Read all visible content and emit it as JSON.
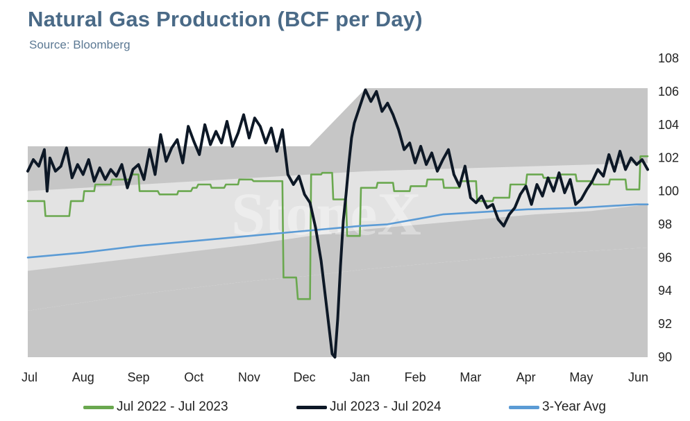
{
  "header": {
    "title": "Natural Gas Production (BCF per Day)",
    "subtitle": "Source: Bloomberg"
  },
  "watermark": "StoneX",
  "colors": {
    "series_2022": "#6aa84f",
    "series_2023": "#0d1826",
    "series_avg": "#5b9bd5",
    "band_dark": "#c6c6c6",
    "band_light": "#e3e3e3"
  },
  "chart_data": {
    "type": "line",
    "title": "Natural Gas Production (BCF per Day)",
    "subtitle": "Source: Bloomberg",
    "x_categories": [
      "Jul",
      "Aug",
      "Sep",
      "Oct",
      "Nov",
      "Dec",
      "Jan",
      "Feb",
      "Mar",
      "Apr",
      "May",
      "Jun"
    ],
    "ylim": [
      90,
      108
    ],
    "yticks": [
      90,
      92,
      94,
      96,
      98,
      100,
      102,
      104,
      106,
      108
    ],
    "y_axis_side": "right",
    "legend_position": "bottom",
    "grid": false,
    "bands": [
      {
        "name": "range-outer",
        "lower": [
          92.8,
          93.3,
          93.8,
          94.2,
          94.6,
          94.9,
          95.3,
          95.6,
          95.9,
          96.2,
          96.4,
          96.6
        ],
        "upper": [
          102.7,
          102.7,
          102.7,
          102.7,
          102.7,
          102.7,
          106.2,
          106.2,
          106.2,
          106.2,
          106.2,
          106.2
        ]
      },
      {
        "name": "range-inner",
        "lower": [
          95.2,
          95.6,
          96.0,
          96.4,
          96.8,
          97.3,
          97.7,
          98.0,
          98.3,
          98.6,
          98.8,
          99.2
        ],
        "upper": [
          100.0,
          100.2,
          100.4,
          100.6,
          100.8,
          101.0,
          101.2,
          101.3,
          101.4,
          101.5,
          101.6,
          101.7
        ]
      }
    ],
    "series": [
      {
        "name": "Jul 2022 - Jul 2023",
        "x": [
          0.0,
          0.3,
          0.32,
          0.75,
          0.78,
          1.0,
          1.02,
          1.2,
          1.22,
          1.5,
          1.52,
          1.85,
          1.88,
          2.0,
          2.02,
          2.35,
          2.38,
          2.7,
          2.72,
          2.95,
          2.98,
          3.05,
          3.08,
          3.3,
          3.32,
          3.55,
          3.58,
          3.8,
          3.82,
          4.05,
          4.08,
          4.6,
          4.62,
          4.85,
          4.88,
          5.1,
          5.12,
          5.3,
          5.32,
          5.5,
          5.52,
          5.75,
          5.77,
          6.0,
          6.02,
          6.3,
          6.32,
          6.6,
          6.62,
          6.9,
          6.92,
          7.2,
          7.22,
          7.5,
          7.52,
          7.8,
          7.82,
          8.1,
          8.12,
          8.4,
          8.42,
          8.7,
          8.72,
          9.0,
          9.02,
          9.3,
          9.32,
          9.6,
          9.62,
          9.9,
          9.92,
          10.2,
          10.22,
          10.5,
          10.52,
          10.8,
          10.82,
          11.05,
          11.07,
          11.2
        ],
        "y": [
          99.4,
          99.4,
          98.5,
          98.5,
          99.4,
          99.4,
          100.0,
          100.0,
          100.4,
          100.4,
          100.7,
          100.7,
          101.0,
          101.0,
          100.0,
          100.0,
          99.8,
          99.8,
          100.0,
          100.0,
          100.2,
          100.2,
          100.4,
          100.4,
          100.2,
          100.2,
          100.4,
          100.4,
          100.7,
          100.7,
          100.6,
          100.6,
          94.8,
          94.8,
          93.5,
          93.5,
          101.0,
          101.0,
          101.1,
          101.1,
          99.5,
          99.5,
          97.3,
          97.3,
          100.2,
          100.2,
          100.5,
          100.5,
          100.0,
          100.0,
          100.3,
          100.3,
          100.7,
          100.7,
          100.2,
          100.2,
          100.6,
          100.6,
          99.4,
          99.4,
          99.6,
          99.6,
          100.4,
          100.4,
          101.0,
          101.0,
          100.8,
          100.8,
          101.0,
          101.0,
          100.6,
          100.6,
          100.4,
          100.4,
          100.7,
          100.7,
          100.1,
          100.1,
          102.1,
          102.1
        ]
      },
      {
        "name": "Jul 2023 - Jul 2024",
        "x": [
          0.0,
          0.1,
          0.2,
          0.3,
          0.35,
          0.4,
          0.5,
          0.6,
          0.7,
          0.8,
          0.9,
          1.0,
          1.1,
          1.2,
          1.3,
          1.4,
          1.5,
          1.6,
          1.7,
          1.8,
          1.9,
          2.0,
          2.1,
          2.2,
          2.3,
          2.4,
          2.5,
          2.6,
          2.7,
          2.8,
          2.9,
          3.0,
          3.1,
          3.2,
          3.3,
          3.4,
          3.5,
          3.6,
          3.7,
          3.8,
          3.9,
          4.0,
          4.1,
          4.2,
          4.3,
          4.4,
          4.5,
          4.6,
          4.7,
          4.8,
          4.9,
          5.0,
          5.1,
          5.2,
          5.3,
          5.4,
          5.5,
          5.55,
          5.6,
          5.65,
          5.7,
          5.75,
          5.8,
          5.85,
          5.9,
          6.0,
          6.1,
          6.2,
          6.3,
          6.4,
          6.5,
          6.6,
          6.7,
          6.8,
          6.9,
          7.0,
          7.1,
          7.2,
          7.3,
          7.4,
          7.5,
          7.6,
          7.7,
          7.8,
          7.9,
          8.0,
          8.1,
          8.2,
          8.3,
          8.4,
          8.5,
          8.6,
          8.7,
          8.8,
          8.9,
          9.0,
          9.1,
          9.2,
          9.3,
          9.4,
          9.5,
          9.6,
          9.7,
          9.8,
          9.9,
          10.0,
          10.1,
          10.2,
          10.3,
          10.4,
          10.5,
          10.6,
          10.7,
          10.8,
          10.9,
          11.0,
          11.1,
          11.2
        ],
        "y": [
          101.2,
          101.9,
          101.5,
          102.5,
          100.0,
          102.0,
          101.2,
          101.5,
          102.6,
          100.8,
          101.6,
          101.0,
          101.9,
          100.6,
          101.4,
          100.7,
          101.3,
          100.9,
          101.6,
          100.2,
          101.3,
          101.6,
          100.7,
          102.5,
          101.0,
          103.4,
          101.8,
          102.6,
          103.1,
          101.7,
          103.9,
          103.0,
          102.2,
          104.0,
          102.8,
          103.6,
          102.9,
          104.2,
          102.7,
          103.5,
          104.6,
          103.2,
          104.4,
          103.9,
          102.9,
          103.8,
          102.4,
          103.7,
          101.0,
          100.4,
          100.9,
          99.8,
          99.3,
          97.8,
          95.8,
          93.0,
          90.2,
          89.6,
          92.3,
          95.5,
          98.2,
          99.8,
          101.6,
          103.2,
          104.1,
          105.1,
          106.1,
          105.4,
          106.0,
          104.8,
          105.3,
          104.6,
          103.7,
          102.5,
          102.9,
          101.7,
          102.7,
          101.6,
          102.3,
          101.2,
          101.9,
          102.5,
          101.0,
          100.3,
          101.5,
          99.6,
          99.3,
          99.7,
          99.0,
          99.2,
          98.3,
          97.9,
          98.6,
          99.0,
          99.8,
          100.3,
          99.2,
          100.4,
          99.7,
          100.8,
          100.0,
          101.1,
          99.9,
          100.7,
          99.2,
          99.5,
          100.1,
          100.6,
          101.3,
          100.9,
          102.2,
          101.2,
          102.4,
          101.3,
          102.0,
          101.6,
          101.9,
          101.3
        ]
      },
      {
        "name": "3-Year Avg",
        "x": [
          0.0,
          1.0,
          2.0,
          3.0,
          4.0,
          5.0,
          6.0,
          6.5,
          7.0,
          7.5,
          8.0,
          9.0,
          10.0,
          11.0,
          11.2
        ],
        "y": [
          96.0,
          96.3,
          96.7,
          97.0,
          97.3,
          97.6,
          97.9,
          98.0,
          98.3,
          98.6,
          98.7,
          98.9,
          99.0,
          99.2,
          99.2
        ]
      }
    ]
  }
}
